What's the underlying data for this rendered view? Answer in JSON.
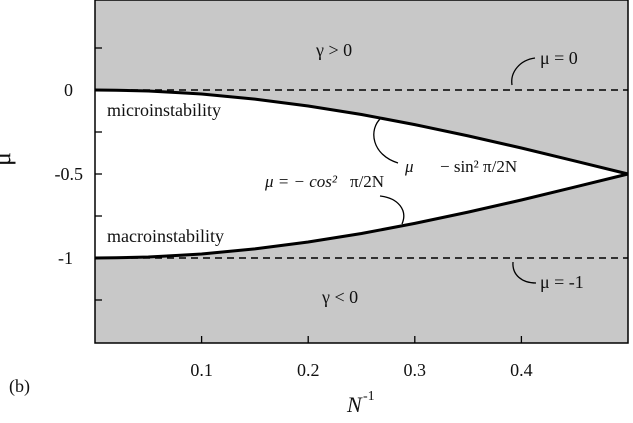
{
  "chart_data": {
    "type": "area",
    "panel_label": "(b)",
    "xlabel": "N",
    "xlabel_sup": "-1",
    "ylabel": "μ",
    "xlim": [
      0,
      0.5
    ],
    "ylim": [
      -1.5,
      0.5
    ],
    "x_ticks": [
      0.1,
      0.2,
      0.3,
      0.4
    ],
    "x_tick_labels": [
      "0.1",
      "0.2",
      "0.3",
      "0.4"
    ],
    "y_ticks": [
      0,
      -0.5,
      -1
    ],
    "y_tick_labels": [
      "0",
      "-0.5",
      "-1"
    ],
    "series": [
      {
        "kind": "boundary",
        "formula_lhs": "μ",
        "formula_rhs": "− sin² π/2N",
        "x": [
          0.02,
          0.05,
          0.08,
          0.1,
          0.15,
          0.2,
          0.25,
          0.3,
          0.35,
          0.4,
          0.45,
          0.5
        ],
        "y": [
          -0.001,
          -0.006,
          -0.016,
          -0.024,
          -0.054,
          -0.095,
          -0.146,
          -0.206,
          -0.273,
          -0.345,
          -0.422,
          -0.5
        ]
      },
      {
        "kind": "boundary",
        "formula_lhs": "μ = − cos²",
        "formula_rhs": "π/2N",
        "x": [
          0.02,
          0.05,
          0.08,
          0.1,
          0.15,
          0.2,
          0.25,
          0.3,
          0.35,
          0.4,
          0.45,
          0.5
        ],
        "y": [
          -0.999,
          -0.994,
          -0.984,
          -0.976,
          -0.946,
          -0.905,
          -0.854,
          -0.794,
          -0.727,
          -0.655,
          -0.578,
          -0.5
        ]
      },
      {
        "kind": "reference",
        "label": "μ = 0",
        "y": 0
      },
      {
        "kind": "reference",
        "label": "μ = -1",
        "y": -1
      }
    ],
    "annotations": {
      "gamma_pos": "γ > 0",
      "gamma_neg": "γ < 0",
      "micro": "microinstability",
      "macro": "macroinstability"
    },
    "shaded_color": "#c8c8c8",
    "unshaded_color": "#ffffff",
    "curve_color": "#000000",
    "grid": false
  }
}
